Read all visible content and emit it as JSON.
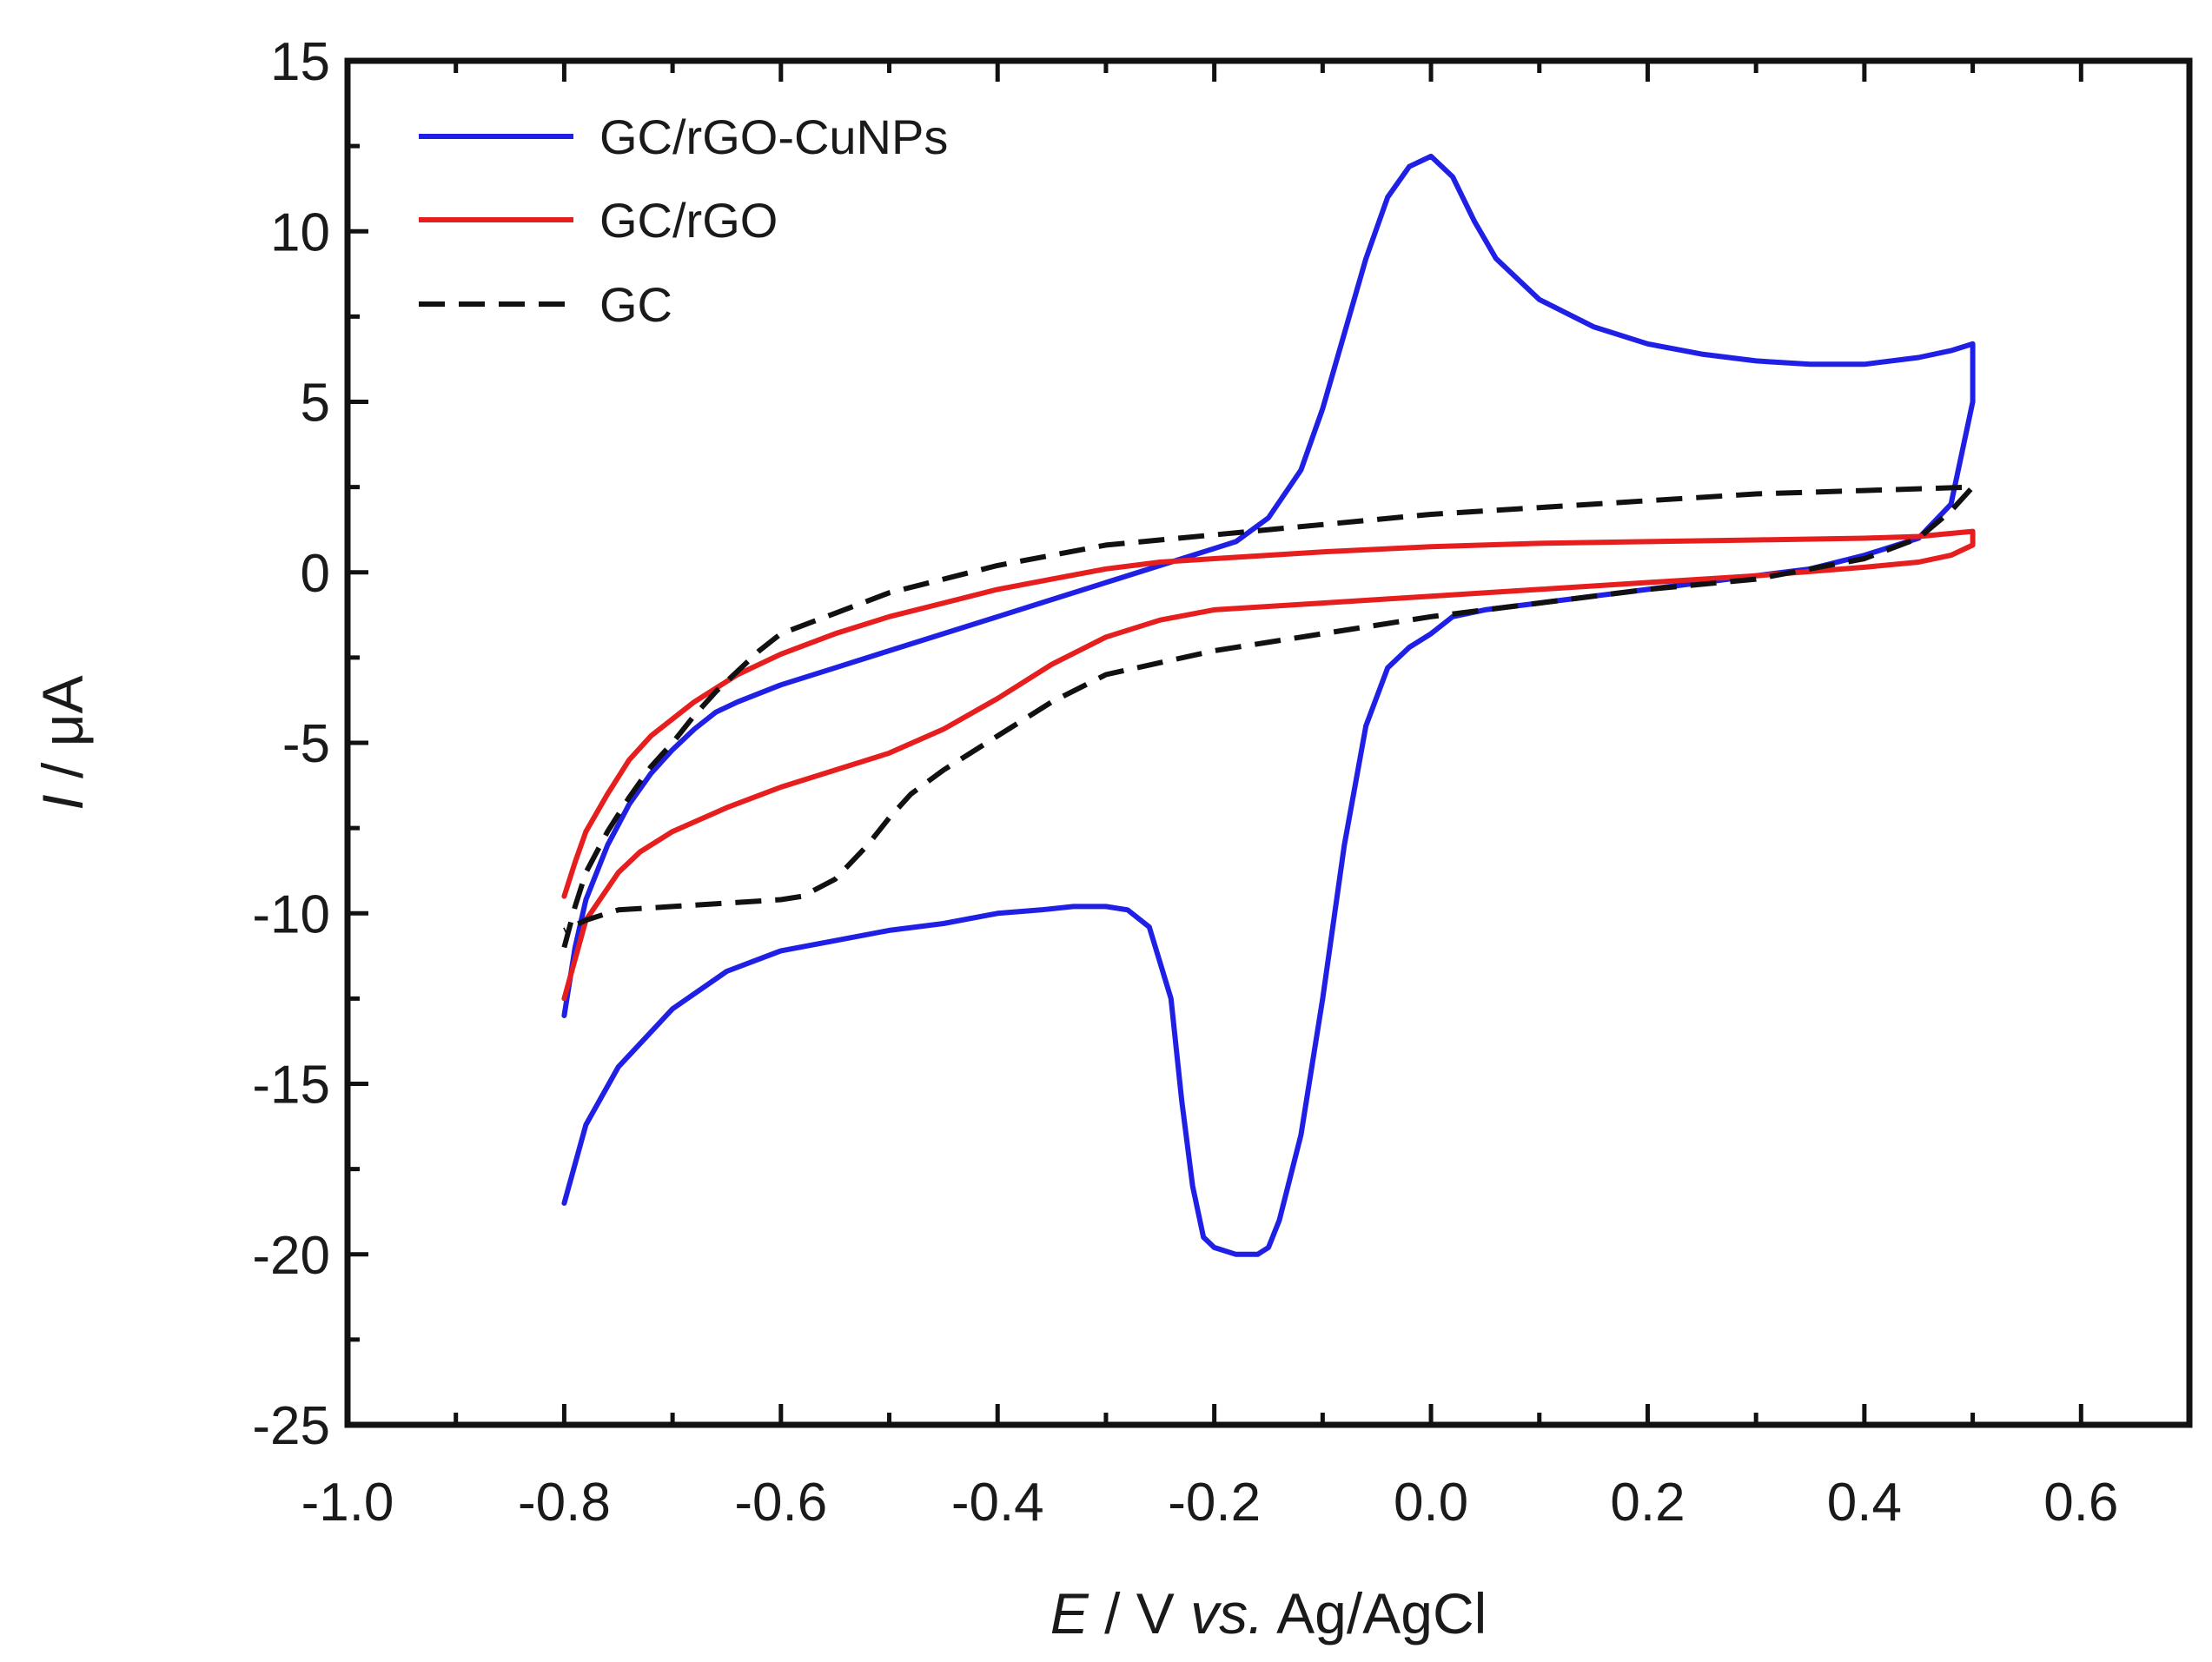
{
  "chart_data": {
    "type": "line",
    "title": "",
    "xlabel": {
      "var": "E",
      "rest": " / V ",
      "vs": "vs.",
      "ref": " Ag/AgCl"
    },
    "ylabel": {
      "var": "I",
      "rest": " / μA"
    },
    "xlim": [
      -1.0,
      0.7
    ],
    "ylim": [
      -25,
      15
    ],
    "xticks": [
      -1.0,
      -0.8,
      -0.6,
      -0.4,
      -0.2,
      0.0,
      0.2,
      0.4,
      0.6
    ],
    "xtick_labels": [
      "-1.0",
      "-0.8",
      "-0.6",
      "-0.4",
      "-0.2",
      "0.0",
      "0.2",
      "0.4",
      "0.6"
    ],
    "yticks": [
      -25,
      -20,
      -15,
      -10,
      -5,
      0,
      5,
      10,
      15
    ],
    "ytick_labels": [
      "-25",
      "-20",
      "-15",
      "-10",
      "-5",
      "0",
      "5",
      "10",
      "15"
    ],
    "legend_position": "top-left",
    "grid": false,
    "series": [
      {
        "name": "GC/rGO-CuNPs",
        "color": "#1f1fe6",
        "dash": "solid",
        "x": [
          -0.8,
          -0.79,
          -0.78,
          -0.76,
          -0.74,
          -0.72,
          -0.7,
          -0.68,
          -0.66,
          -0.64,
          -0.6,
          -0.55,
          -0.5,
          -0.45,
          -0.4,
          -0.35,
          -0.3,
          -0.25,
          -0.2,
          -0.18,
          -0.15,
          -0.12,
          -0.1,
          -0.08,
          -0.06,
          -0.04,
          -0.02,
          0.0,
          0.02,
          0.04,
          0.06,
          0.1,
          0.15,
          0.2,
          0.25,
          0.3,
          0.35,
          0.4,
          0.45,
          0.48,
          0.5,
          0.5,
          0.48,
          0.45,
          0.4,
          0.35,
          0.3,
          0.25,
          0.2,
          0.15,
          0.1,
          0.05,
          0.02,
          0.0,
          -0.02,
          -0.04,
          -0.06,
          -0.08,
          -0.1,
          -0.12,
          -0.14,
          -0.15,
          -0.16,
          -0.18,
          -0.2,
          -0.21,
          -0.22,
          -0.23,
          -0.24,
          -0.26,
          -0.28,
          -0.3,
          -0.33,
          -0.36,
          -0.4,
          -0.45,
          -0.5,
          -0.55,
          -0.6,
          -0.65,
          -0.7,
          -0.75,
          -0.78,
          -0.8
        ],
        "y": [
          -13.0,
          -11.0,
          -9.6,
          -8.0,
          -6.8,
          -5.9,
          -5.2,
          -4.6,
          -4.1,
          -3.8,
          -3.3,
          -2.8,
          -2.3,
          -1.8,
          -1.3,
          -0.8,
          -0.3,
          0.2,
          0.7,
          0.9,
          1.6,
          3.0,
          4.8,
          7.0,
          9.2,
          11.0,
          11.9,
          12.2,
          11.6,
          10.3,
          9.2,
          8.0,
          7.2,
          6.7,
          6.4,
          6.2,
          6.1,
          6.1,
          6.3,
          6.5,
          6.7,
          5.0,
          2.0,
          1.0,
          0.5,
          0.1,
          -0.1,
          -0.3,
          -0.5,
          -0.7,
          -0.9,
          -1.1,
          -1.3,
          -1.8,
          -2.2,
          -2.8,
          -4.5,
          -8.0,
          -12.5,
          -16.5,
          -19.0,
          -19.8,
          -20.0,
          -20.0,
          -19.8,
          -19.5,
          -18.0,
          -15.5,
          -12.5,
          -10.4,
          -9.9,
          -9.8,
          -9.8,
          -9.9,
          -10.0,
          -10.3,
          -10.5,
          -10.8,
          -11.1,
          -11.7,
          -12.8,
          -14.5,
          -16.2,
          -18.5
        ]
      },
      {
        "name": "GC/rGO",
        "color": "#e61e1e",
        "dash": "solid",
        "x": [
          -0.8,
          -0.79,
          -0.78,
          -0.76,
          -0.74,
          -0.72,
          -0.7,
          -0.68,
          -0.66,
          -0.64,
          -0.62,
          -0.6,
          -0.55,
          -0.5,
          -0.45,
          -0.4,
          -0.35,
          -0.3,
          -0.25,
          -0.2,
          -0.1,
          0.0,
          0.1,
          0.2,
          0.3,
          0.4,
          0.45,
          0.5,
          0.5,
          0.48,
          0.45,
          0.4,
          0.3,
          0.2,
          0.1,
          0.0,
          -0.1,
          -0.2,
          -0.25,
          -0.3,
          -0.35,
          -0.4,
          -0.45,
          -0.5,
          -0.55,
          -0.6,
          -0.65,
          -0.7,
          -0.73,
          -0.75,
          -0.78,
          -0.8
        ],
        "y": [
          -9.5,
          -8.5,
          -7.6,
          -6.5,
          -5.5,
          -4.8,
          -4.3,
          -3.8,
          -3.4,
          -3.0,
          -2.7,
          -2.4,
          -1.8,
          -1.3,
          -0.9,
          -0.5,
          -0.2,
          0.1,
          0.3,
          0.4,
          0.6,
          0.75,
          0.85,
          0.9,
          0.95,
          1.0,
          1.05,
          1.2,
          0.8,
          0.5,
          0.3,
          0.15,
          -0.1,
          -0.3,
          -0.5,
          -0.7,
          -0.9,
          -1.1,
          -1.4,
          -1.9,
          -2.7,
          -3.7,
          -4.6,
          -5.3,
          -5.8,
          -6.3,
          -6.9,
          -7.6,
          -8.2,
          -8.8,
          -10.2,
          -12.5
        ]
      },
      {
        "name": "GC",
        "color": "#111111",
        "dash": "dashed",
        "x": [
          -0.8,
          -0.79,
          -0.78,
          -0.76,
          -0.74,
          -0.72,
          -0.7,
          -0.68,
          -0.66,
          -0.64,
          -0.62,
          -0.6,
          -0.55,
          -0.5,
          -0.45,
          -0.4,
          -0.35,
          -0.3,
          -0.2,
          -0.1,
          0.0,
          0.1,
          0.2,
          0.3,
          0.4,
          0.45,
          0.5,
          0.48,
          0.45,
          0.4,
          0.3,
          0.2,
          0.1,
          0.0,
          -0.1,
          -0.2,
          -0.3,
          -0.35,
          -0.4,
          -0.45,
          -0.48,
          -0.5,
          -0.52,
          -0.55,
          -0.58,
          -0.6,
          -0.65,
          -0.7,
          -0.75,
          -0.78,
          -0.8
        ],
        "y": [
          -11.0,
          -9.8,
          -8.8,
          -7.6,
          -6.6,
          -5.7,
          -5.0,
          -4.2,
          -3.5,
          -2.9,
          -2.3,
          -1.8,
          -1.2,
          -0.6,
          -0.2,
          0.2,
          0.5,
          0.8,
          1.1,
          1.4,
          1.7,
          1.9,
          2.1,
          2.3,
          2.4,
          2.45,
          2.5,
          1.8,
          1.0,
          0.4,
          -0.2,
          -0.5,
          -0.9,
          -1.3,
          -1.8,
          -2.3,
          -3.0,
          -3.8,
          -4.8,
          -5.8,
          -6.5,
          -7.2,
          -8.0,
          -9.0,
          -9.5,
          -9.6,
          -9.7,
          -9.8,
          -9.9,
          -10.2,
          -10.5
        ]
      }
    ]
  }
}
